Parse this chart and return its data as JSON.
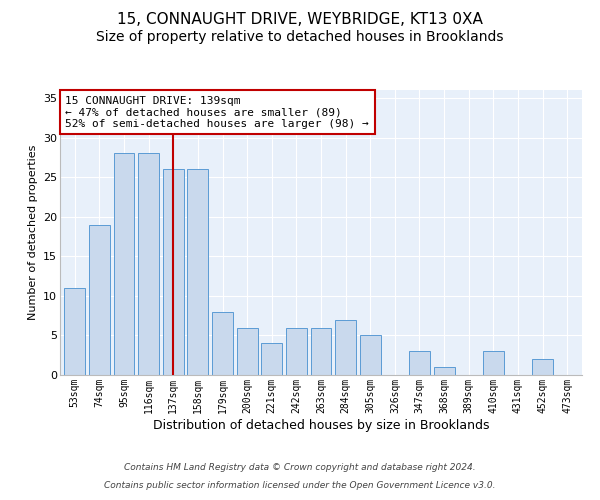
{
  "title": "15, CONNAUGHT DRIVE, WEYBRIDGE, KT13 0XA",
  "subtitle": "Size of property relative to detached houses in Brooklands",
  "xlabel": "Distribution of detached houses by size in Brooklands",
  "ylabel": "Number of detached properties",
  "categories": [
    "53sqm",
    "74sqm",
    "95sqm",
    "116sqm",
    "137sqm",
    "158sqm",
    "179sqm",
    "200sqm",
    "221sqm",
    "242sqm",
    "263sqm",
    "284sqm",
    "305sqm",
    "326sqm",
    "347sqm",
    "368sqm",
    "389sqm",
    "410sqm",
    "431sqm",
    "452sqm",
    "473sqm"
  ],
  "values": [
    11,
    19,
    28,
    28,
    26,
    26,
    8,
    6,
    4,
    6,
    6,
    7,
    5,
    0,
    3,
    1,
    0,
    3,
    0,
    2,
    0
  ],
  "bar_color": "#c9d9ed",
  "bar_edge_color": "#5b9bd5",
  "highlight_index": 4,
  "highlight_color": "#c00000",
  "ylim": [
    0,
    36
  ],
  "yticks": [
    0,
    5,
    10,
    15,
    20,
    25,
    30,
    35
  ],
  "annotation_text": "15 CONNAUGHT DRIVE: 139sqm\n← 47% of detached houses are smaller (89)\n52% of semi-detached houses are larger (98) →",
  "annotation_box_color": "#ffffff",
  "annotation_box_edge": "#c00000",
  "footer_line1": "Contains HM Land Registry data © Crown copyright and database right 2024.",
  "footer_line2": "Contains public sector information licensed under the Open Government Licence v3.0.",
  "title_fontsize": 11,
  "subtitle_fontsize": 10,
  "tick_fontsize": 7,
  "ylabel_fontsize": 8,
  "xlabel_fontsize": 9,
  "annotation_fontsize": 8,
  "footer_fontsize": 6.5
}
